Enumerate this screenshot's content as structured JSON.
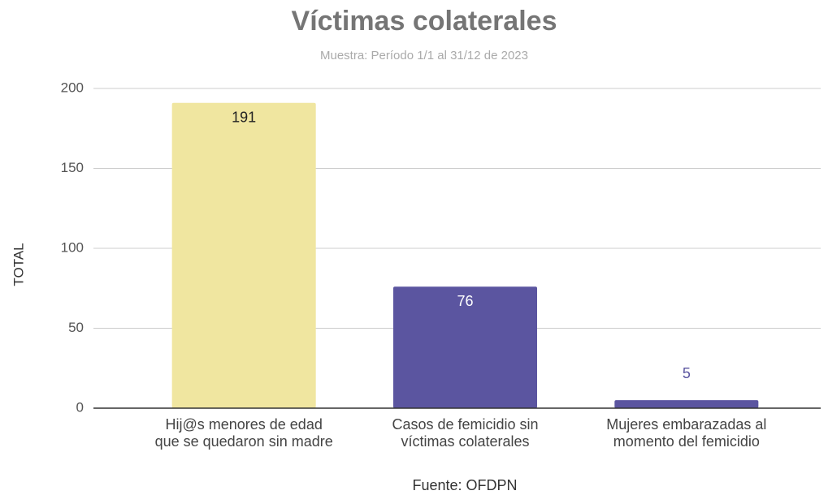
{
  "chart_data": {
    "type": "bar",
    "title": "Víctimas colaterales",
    "subtitle": "Muestra: Período 1/1 al 31/12  de 2023",
    "y_label": "TOTAL",
    "source": "Fuente: OFDPN",
    "categories": [
      [
        "Hij@s menores de edad",
        "que se quedaron sin madre"
      ],
      [
        "Casos de femicidio sin",
        "víctimas colaterales"
      ],
      [
        "Mujeres embarazadas al",
        "momento del femicidio"
      ]
    ],
    "values": [
      191,
      76,
      5
    ],
    "colors": [
      "#f0e6a0",
      "#5b55a0",
      "#5b55a0"
    ],
    "ylim": [
      0,
      200
    ],
    "yticks": [
      0,
      50,
      100,
      150,
      200
    ],
    "grid": true
  }
}
